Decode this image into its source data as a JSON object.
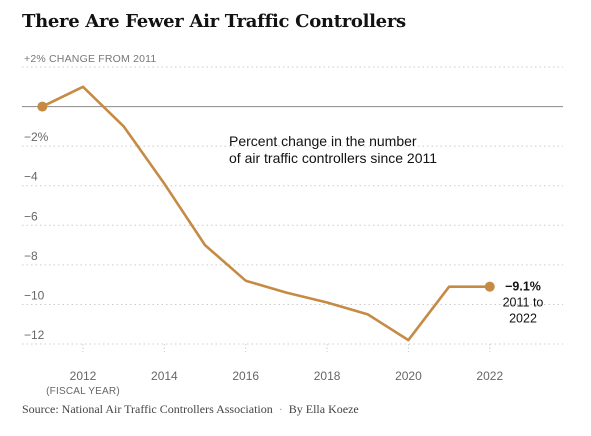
{
  "title": "There Are Fewer Air Traffic Controllers",
  "footer": {
    "source": "Source: National Air Traffic Controllers Association",
    "separator": "·",
    "byline": "By Ella Koeze"
  },
  "colors": {
    "line": "#c58b45",
    "zero_line": "#888888",
    "grid": "#cccccc"
  },
  "chart_data": {
    "type": "line",
    "title": "There Are Fewer Air Traffic Controllers",
    "ylabel": "+2% CHANGE FROM 2011",
    "xunit_label": "(FISCAL YEAR)",
    "annotation": [
      "Percent change in the number",
      "of air traffic controllers since 2011"
    ],
    "end_label": {
      "value": "−9.1%",
      "line2": "2011 to",
      "line3": "2022"
    },
    "x": [
      2011,
      2012,
      2013,
      2014,
      2015,
      2016,
      2017,
      2018,
      2019,
      2020,
      2021,
      2022
    ],
    "y": [
      0,
      1.0,
      -1.0,
      -3.9,
      -7.0,
      -8.8,
      -9.4,
      -9.9,
      -10.5,
      -11.8,
      -9.1,
      -9.1
    ],
    "xlim": [
      2010.5,
      2023.8
    ],
    "ylim": [
      -12.2,
      2
    ],
    "x_ticks": [
      2012,
      2014,
      2016,
      2018,
      2020,
      2022
    ],
    "x_tick_labels": [
      "2012",
      "2014",
      "2016",
      "2018",
      "2020",
      "2022"
    ],
    "y_ticks": [
      2,
      -2,
      -4,
      -6,
      -8,
      -10,
      -12
    ],
    "y_tick_labels": [
      "+2% CHANGE FROM 2011",
      "−2%",
      "−4",
      "−6",
      "−8",
      "−10",
      "−12"
    ],
    "grid": true,
    "legend": "none"
  }
}
